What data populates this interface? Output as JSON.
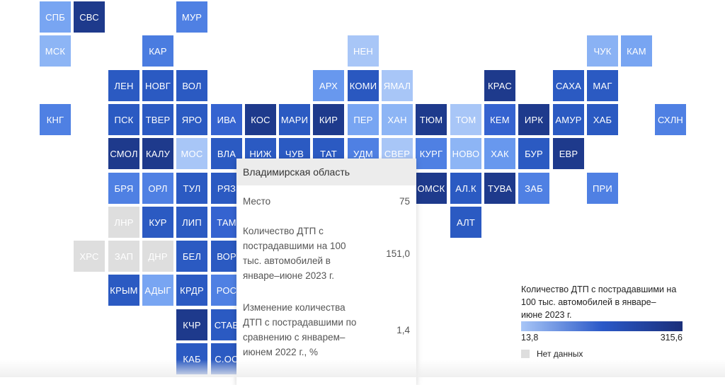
{
  "tiles": [
    {
      "label": "СПБ",
      "color": "#78a5f2"
    },
    {
      "label": "СВС",
      "color": "#1e3a8c"
    },
    {
      "label": "МУР",
      "color": "#4f80e3"
    },
    {
      "label": "МСК",
      "color": "#8db5f5"
    },
    {
      "label": "КАР",
      "color": "#4a7ce0"
    },
    {
      "label": "НЕН",
      "color": "#a8c6f7"
    },
    {
      "label": "ЧУК",
      "color": "#8ab2f4"
    },
    {
      "label": "КАМ",
      "color": "#78a5f2"
    },
    {
      "label": "ЛЕН",
      "color": "#2b5ac2"
    },
    {
      "label": "НОВГ",
      "color": "#2b5ac2"
    },
    {
      "label": "ВОЛ",
      "color": "#2b5ac2"
    },
    {
      "label": "АРХ",
      "color": "#6898ee"
    },
    {
      "label": "КОМИ",
      "color": "#2a58c0"
    },
    {
      "label": "ЯМАЛ",
      "color": "#a8c6f7"
    },
    {
      "label": "КРАС",
      "color": "#1e3a8c"
    },
    {
      "label": "САХА",
      "color": "#2b5ac2"
    },
    {
      "label": "МАГ",
      "color": "#2b5ac2"
    },
    {
      "label": "КНГ",
      "color": "#4f80e3"
    },
    {
      "label": "ПСК",
      "color": "#2b5ac2"
    },
    {
      "label": "ТВЕР",
      "color": "#2b5ac2"
    },
    {
      "label": "ЯРО",
      "color": "#2b5ac2"
    },
    {
      "label": "ИВА",
      "color": "#3563d0"
    },
    {
      "label": "КОС",
      "color": "#1e3a8c"
    },
    {
      "label": "МАРИ",
      "color": "#2b5ac2"
    },
    {
      "label": "КИР",
      "color": "#1e3a8c"
    },
    {
      "label": "ПЕР",
      "color": "#78a5f2"
    },
    {
      "label": "ХАН",
      "color": "#8db5f5"
    },
    {
      "label": "ТЮМ",
      "color": "#1e3a8c"
    },
    {
      "label": "ТОМ",
      "color": "#a8c6f7"
    },
    {
      "label": "КЕМ",
      "color": "#3563d0"
    },
    {
      "label": "ИРК",
      "color": "#1e3a8c"
    },
    {
      "label": "АМУР",
      "color": "#2b5ac2"
    },
    {
      "label": "ХАБ",
      "color": "#2b5ac2"
    },
    {
      "label": "СХЛН",
      "color": "#4f80e3"
    },
    {
      "label": "СМОЛ",
      "color": "#1e3a8c"
    },
    {
      "label": "КАЛУ",
      "color": "#1e3a8c"
    },
    {
      "label": "МОС",
      "color": "#a8c6f7"
    },
    {
      "label": "ВЛА",
      "color": "#2b5ac2"
    },
    {
      "label": "НИЖ",
      "color": "#2b5ac2"
    },
    {
      "label": "ЧУВ",
      "color": "#2b5ac2"
    },
    {
      "label": "ТАТ",
      "color": "#2b5ac2"
    },
    {
      "label": "УДМ",
      "color": "#4f80e3"
    },
    {
      "label": "СВЕР",
      "color": "#a8c6f7"
    },
    {
      "label": "КУРГ",
      "color": "#4f80e3"
    },
    {
      "label": "НОВО",
      "color": "#8db5f5"
    },
    {
      "label": "ХАК",
      "color": "#6898ee"
    },
    {
      "label": "БУР",
      "color": "#2b5ac2"
    },
    {
      "label": "ЕВР",
      "color": "#1e3a8c"
    },
    {
      "label": "БРЯ",
      "color": "#4f80e3"
    },
    {
      "label": "ОРЛ",
      "color": "#4f80e3"
    },
    {
      "label": "ТУЛ",
      "color": "#2b5ac2"
    },
    {
      "label": "РЯЗ",
      "color": "#2b5ac2"
    },
    {
      "label": "ОМСК",
      "color": "#1e3a8c"
    },
    {
      "label": "АЛ.К",
      "color": "#2b5ac2"
    },
    {
      "label": "ТУВА",
      "color": "#1e3a8c"
    },
    {
      "label": "ЗАБ",
      "color": "#4f80e3"
    },
    {
      "label": "ПРИ",
      "color": "#4f80e3"
    },
    {
      "label": "ЛНР",
      "color": "nodata"
    },
    {
      "label": "КУР",
      "color": "#2b5ac2"
    },
    {
      "label": "ЛИП",
      "color": "#2b5ac2"
    },
    {
      "label": "ТАМ",
      "color": "#3563d0"
    },
    {
      "label": "АЛТ",
      "color": "#2b5ac2"
    },
    {
      "label": "ХРС",
      "color": "nodata"
    },
    {
      "label": "ЗАП",
      "color": "nodata"
    },
    {
      "label": "ДНР",
      "color": "nodata"
    },
    {
      "label": "БЕЛ",
      "color": "#2b5ac2"
    },
    {
      "label": "ВОР",
      "color": "#2b5ac2"
    },
    {
      "label": "КРЫМ",
      "color": "#2b5ac2"
    },
    {
      "label": "АДЫГ",
      "color": "#78a5f2"
    },
    {
      "label": "КРДР",
      "color": "#2b5ac2"
    },
    {
      "label": "РОС",
      "color": "#4f80e3"
    },
    {
      "label": "КЧР",
      "color": "#1e3a8c"
    },
    {
      "label": "СТАВ",
      "color": "#2b5ac2"
    },
    {
      "label": "КАБ",
      "color": "#2b5ac2"
    },
    {
      "label": "С.ОС",
      "color": "#2b5ac2"
    }
  ],
  "tooltip": {
    "title": "Владимирская область",
    "rows": [
      {
        "label": "Место",
        "value": "75"
      },
      {
        "label": "Количество ДТП с пострадавшими на 100 тыс. автомобилей в январе–июне 2023 г.",
        "value": "151,0"
      },
      {
        "label": "Изменение количества ДТП с пострадавшими по сравнению с январем–июнем 2022 г., %",
        "value": "1,4"
      }
    ]
  },
  "legend": {
    "title": "Количество ДТП с пострадавшими на 100 тыс. автомобилей в январе–июне 2023 г.",
    "min": "13,8",
    "max": "315,6",
    "nodata_label": "Нет данных",
    "colors": {
      "low": "#a8c6f7",
      "mid": "#2b59c8",
      "high": "#1b2f7a",
      "nodata": "#dedede"
    }
  }
}
